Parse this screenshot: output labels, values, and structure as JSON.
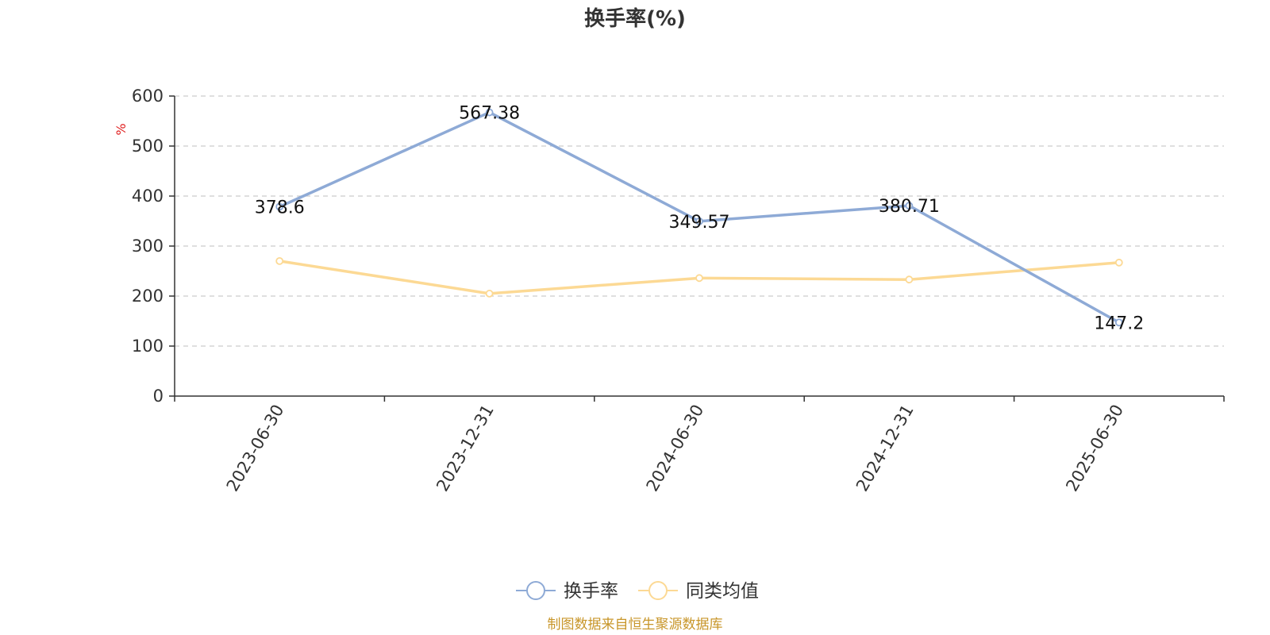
{
  "chart_data": {
    "type": "line",
    "title": "换手率(%)",
    "ylabel": "%",
    "ylim": [
      0,
      600
    ],
    "yticks": [
      0,
      100,
      200,
      300,
      400,
      500,
      600
    ],
    "categories": [
      "2023-06-30",
      "2023-12-31",
      "2024-06-30",
      "2024-12-31",
      "2025-06-30"
    ],
    "series": [
      {
        "name": "换手率",
        "color": "#8eaad6",
        "values": [
          378.6,
          567.38,
          349.57,
          380.71,
          147.2
        ],
        "labels": [
          "378.6",
          "567.38",
          "349.57",
          "380.71",
          "147.2"
        ]
      },
      {
        "name": "同类均值",
        "color": "#fcd994",
        "values": [
          270,
          205,
          236,
          233,
          267
        ]
      }
    ],
    "grid": true,
    "legend_position": "bottom"
  },
  "source": "制图数据来自恒生聚源数据库"
}
